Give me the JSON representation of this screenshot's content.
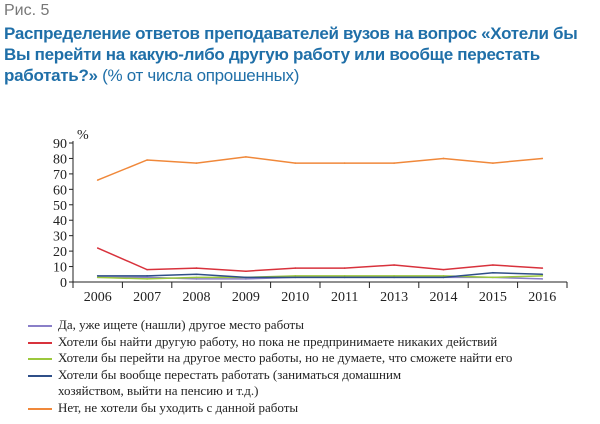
{
  "figure_label": "Рис. 5",
  "title": "Распределение ответов преподавателей вузов на вопрос «Хотели бы Вы перейти на какую-либо другую работу или вообще перестать работать?»",
  "subtitle": "(% от числа опрошенных)",
  "chart_data": {
    "type": "line",
    "title": "Распределение ответов преподавателей вузов на вопрос «Хотели бы Вы перейти на какую-либо другую работу или вообще перестать работать?»",
    "ylabel": "%",
    "xlabel": "",
    "ylim": [
      0,
      90
    ],
    "yticks": [
      "0",
      "10",
      "20",
      "30",
      "40",
      "50",
      "60",
      "70",
      "80",
      "90"
    ],
    "categories": [
      "2006",
      "2007",
      "2008",
      "2009",
      "2010",
      "2011",
      "2013",
      "2014",
      "2015",
      "2016"
    ],
    "legend_position": "bottom",
    "series": [
      {
        "name": "Да, уже ищете (нашли) другое место работы",
        "color": "#8a7fc8",
        "values": [
          3,
          3,
          2,
          2,
          3,
          3,
          3,
          3,
          3,
          2
        ]
      },
      {
        "name": "Хотели бы найти другую работу, но пока не предпринимаете никаких действий",
        "color": "#d8323c",
        "values": [
          22,
          8,
          9,
          7,
          9,
          9,
          11,
          8,
          11,
          9
        ]
      },
      {
        "name": "Хотели бы перейти на другое место работы, но не думаете, что сможете найти его",
        "color": "#9cc83c",
        "values": [
          3,
          2,
          3,
          3,
          4,
          4,
          4,
          4,
          3,
          4
        ]
      },
      {
        "name": "Хотели бы вообще перестать работать (заниматься домашним хозяйством, выйти на пенсию и т.д.)",
        "color": "#2f4f88",
        "values": [
          4,
          4,
          5,
          3,
          3,
          3,
          3,
          3,
          6,
          5
        ]
      },
      {
        "name": "Нет, не хотели бы уходить с данной работы",
        "color": "#f0883a",
        "values": [
          66,
          79,
          77,
          81,
          77,
          77,
          77,
          80,
          77,
          80
        ]
      }
    ]
  }
}
